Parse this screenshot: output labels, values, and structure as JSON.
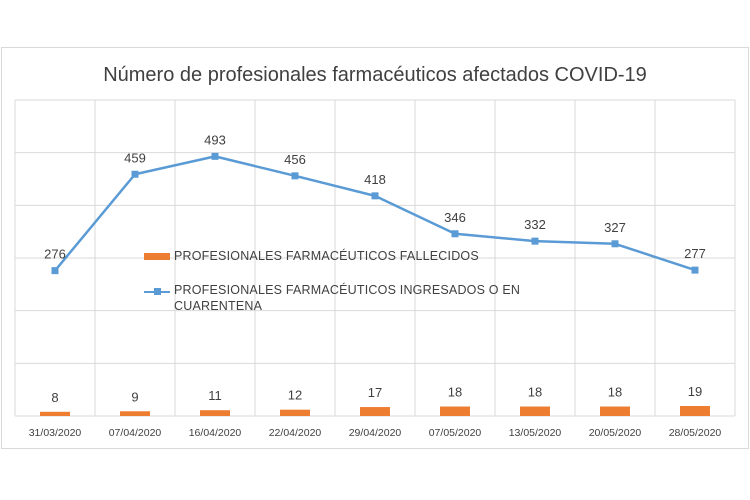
{
  "chart_data": {
    "type": "bar+line",
    "title": "Número de profesionales farmacéuticos afectados COVID-19",
    "categories": [
      "31/03/2020",
      "07/04/2020",
      "16/04/2020",
      "22/04/2020",
      "29/04/2020",
      "07/05/2020",
      "13/05/2020",
      "20/05/2020",
      "28/05/2020"
    ],
    "series": [
      {
        "name": "PROFESIONALES FARMACÉUTICOS FALLECIDOS",
        "type": "bar",
        "color": "#ed7d31",
        "values": [
          8,
          9,
          11,
          12,
          17,
          18,
          18,
          18,
          19
        ]
      },
      {
        "name": "PROFESIONALES FARMACÉUTICOS INGRESADOS O EN CUARENTENA",
        "type": "line",
        "color": "#5b9bd5",
        "values": [
          276,
          459,
          493,
          456,
          418,
          346,
          332,
          327,
          277
        ]
      }
    ],
    "ylim": [
      0,
      600
    ],
    "grid": true,
    "legend": "center"
  }
}
